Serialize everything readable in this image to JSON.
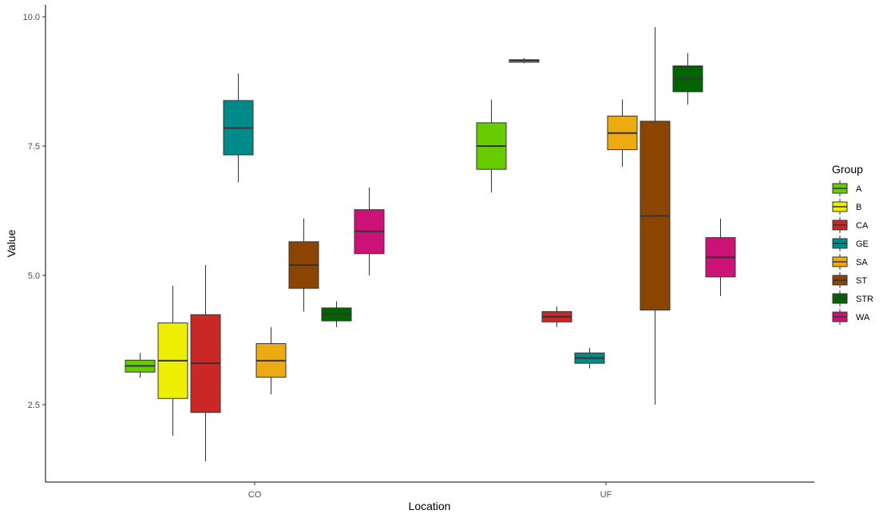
{
  "chart_data": {
    "type": "boxplot",
    "xlabel": "Location",
    "ylabel": "Value",
    "ylim": [
      1.0,
      10.3
    ],
    "yticks": [
      2.5,
      5.0,
      7.5,
      10.0
    ],
    "ytick_labels": [
      "2.5",
      "5.0",
      "7.5",
      "10.0"
    ],
    "categories": [
      "CO",
      "UF"
    ],
    "legend": {
      "title": "Group",
      "position": "right"
    },
    "grid": false,
    "groups": [
      {
        "name": "A",
        "color": "#66CC00"
      },
      {
        "name": "B",
        "color": "#EEEE00"
      },
      {
        "name": "CA",
        "color": "#CC2727"
      },
      {
        "name": "GE",
        "color": "#008B8B"
      },
      {
        "name": "SA",
        "color": "#EEAA11"
      },
      {
        "name": "ST",
        "color": "#8B4500"
      },
      {
        "name": "STR",
        "color": "#006400"
      },
      {
        "name": "WA",
        "color": "#CC1177"
      }
    ],
    "boxes": [
      {
        "location": "CO",
        "group": "A",
        "min": 3.02,
        "q1": 3.13,
        "median": 3.25,
        "q3": 3.36,
        "max": 3.5
      },
      {
        "location": "CO",
        "group": "B",
        "min": 1.9,
        "q1": 2.62,
        "median": 3.35,
        "q3": 4.08,
        "max": 4.8
      },
      {
        "location": "CO",
        "group": "CA",
        "min": 1.4,
        "q1": 2.35,
        "median": 3.3,
        "q3": 4.24,
        "max": 5.2
      },
      {
        "location": "CO",
        "group": "GE",
        "min": 6.8,
        "q1": 7.33,
        "median": 7.85,
        "q3": 8.38,
        "max": 8.9
      },
      {
        "location": "CO",
        "group": "SA",
        "min": 2.7,
        "q1": 3.03,
        "median": 3.35,
        "q3": 3.68,
        "max": 4.0
      },
      {
        "location": "CO",
        "group": "ST",
        "min": 4.3,
        "q1": 4.75,
        "median": 5.2,
        "q3": 5.65,
        "max": 6.1
      },
      {
        "location": "CO",
        "group": "STR",
        "min": 4.0,
        "q1": 4.12,
        "median": 4.25,
        "q3": 4.37,
        "max": 4.5
      },
      {
        "location": "CO",
        "group": "WA",
        "min": 5.0,
        "q1": 5.42,
        "median": 5.85,
        "q3": 6.27,
        "max": 6.7
      },
      {
        "location": "UF",
        "group": "A",
        "min": 6.6,
        "q1": 7.05,
        "median": 7.5,
        "q3": 7.95,
        "max": 8.4
      },
      {
        "location": "UF",
        "group": "B",
        "min": 9.1,
        "q1": 9.12,
        "median": 9.15,
        "q3": 9.17,
        "max": 9.2
      },
      {
        "location": "UF",
        "group": "CA",
        "min": 4.0,
        "q1": 4.1,
        "median": 4.2,
        "q3": 4.3,
        "max": 4.4
      },
      {
        "location": "UF",
        "group": "GE",
        "min": 3.2,
        "q1": 3.3,
        "median": 3.4,
        "q3": 3.5,
        "max": 3.6
      },
      {
        "location": "UF",
        "group": "SA",
        "min": 7.1,
        "q1": 7.43,
        "median": 7.75,
        "q3": 8.08,
        "max": 8.4
      },
      {
        "location": "UF",
        "group": "ST",
        "min": 2.5,
        "q1": 4.33,
        "median": 6.15,
        "q3": 7.98,
        "max": 9.8
      },
      {
        "location": "UF",
        "group": "STR",
        "min": 8.3,
        "q1": 8.55,
        "median": 8.8,
        "q3": 9.05,
        "max": 9.3
      },
      {
        "location": "UF",
        "group": "WA",
        "min": 4.6,
        "q1": 4.97,
        "median": 5.35,
        "q3": 5.73,
        "max": 6.1
      }
    ]
  }
}
